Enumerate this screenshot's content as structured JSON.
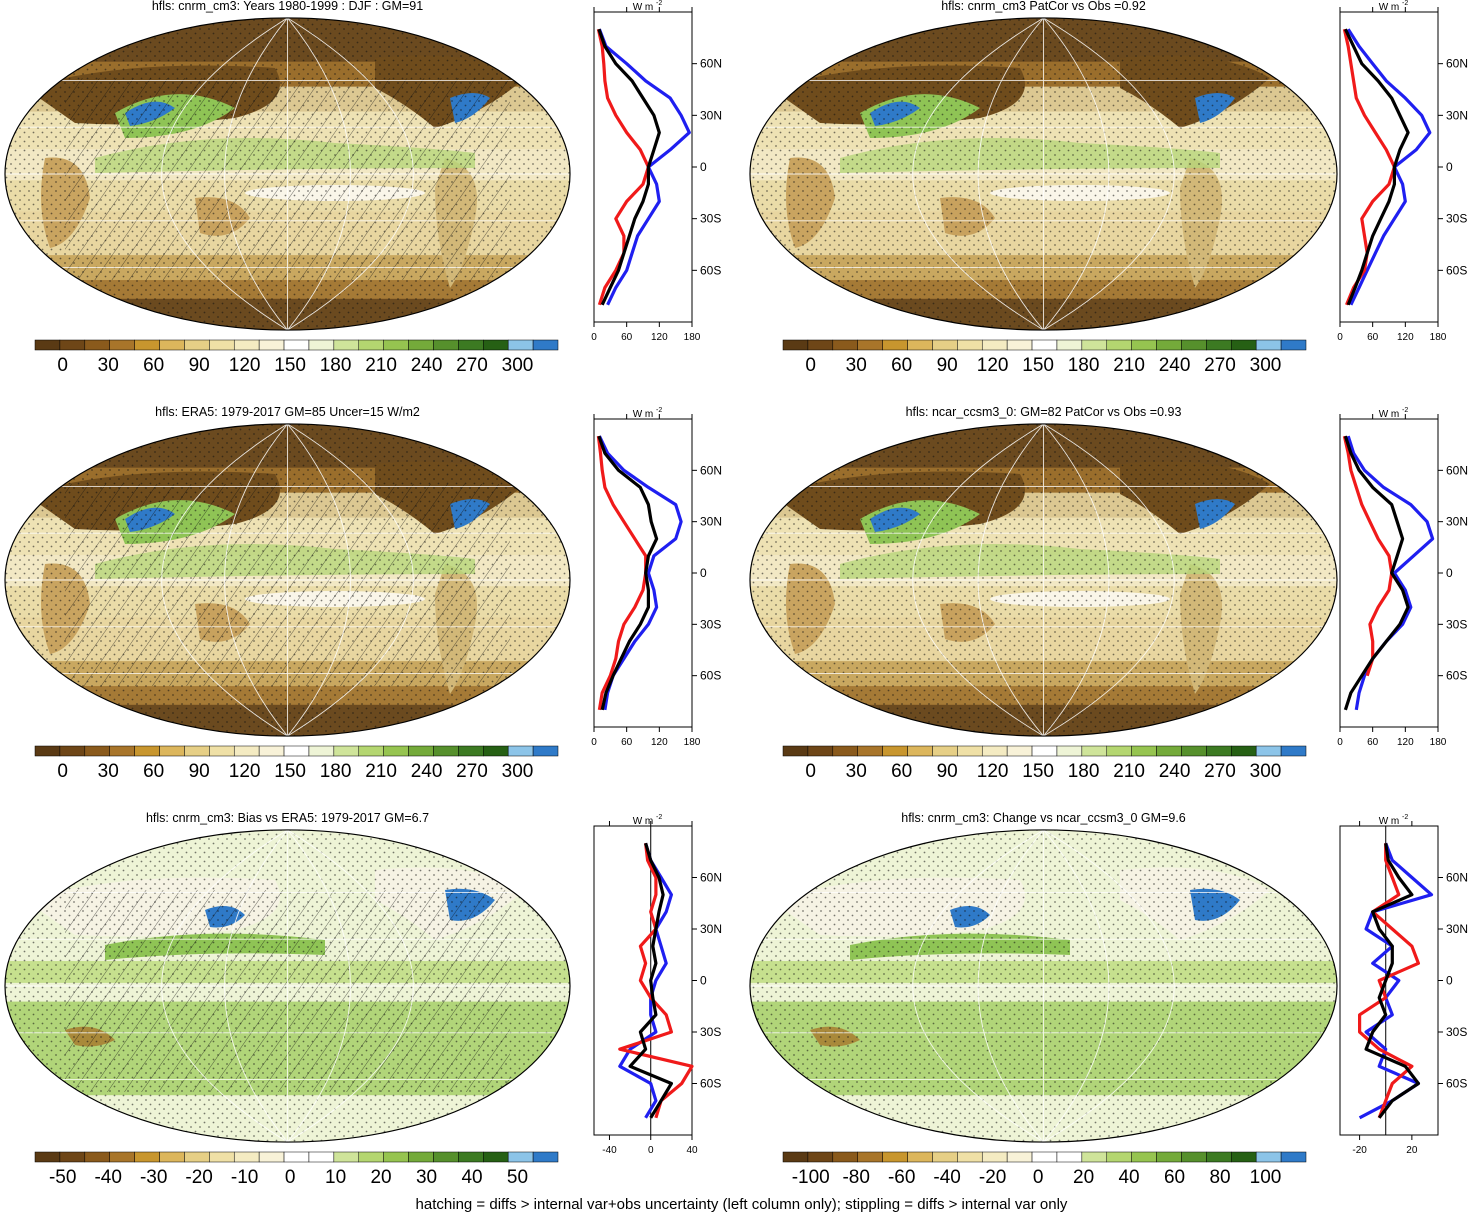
{
  "footer_note": "hatching = diffs > internal var+obs uncertainty (left column only); stippling = diffs > internal var only",
  "colors": {
    "mean_palette": [
      "#5a3a14",
      "#6e4617",
      "#8a5a1c",
      "#a8752a",
      "#c8962e",
      "#dcb65c",
      "#e6cf86",
      "#efe0a6",
      "#f4ebc2",
      "#f8f2d8",
      "#ffffff",
      "#eef4d6",
      "#cfe49a",
      "#b4d670",
      "#96c450",
      "#74aa3a",
      "#56902c",
      "#3c7a22",
      "#266014",
      "#8cc4e8",
      "#2f7ac8"
    ],
    "diff_palette": [
      "#5a3a14",
      "#6e4617",
      "#8a5a1c",
      "#a8752a",
      "#c8962e",
      "#dcb65c",
      "#e6cf86",
      "#efe0a6",
      "#f4ebc2",
      "#f8f2d8",
      "#ffffff",
      "#ffffff",
      "#cfe49a",
      "#b4d670",
      "#96c450",
      "#74aa3a",
      "#56902c",
      "#3c7a22",
      "#266014",
      "#8cc4e8",
      "#2f7ac8"
    ],
    "series_blue": "#1f1ff0",
    "series_red": "#f01a1a",
    "series_black": "#000000",
    "graticule": "#ffffff"
  },
  "panels": [
    {
      "title": "hfls: cnrm_cm3: Years 1980-1999 : DJF : GM=91",
      "map_theme": "mean",
      "hatching": true,
      "colorbar": {
        "labels": [
          "0",
          "30",
          "60",
          "90",
          "120",
          "150",
          "180",
          "210",
          "240",
          "270",
          "300"
        ]
      },
      "zonal": {
        "unit_label": "W m",
        "unit_sup": "-2",
        "x_ticks": [
          "0",
          "60",
          "120",
          "180"
        ],
        "xlim": [
          0,
          180
        ],
        "y_ticks": [
          "60N",
          "30N",
          "0",
          "30S",
          "60S"
        ]
      }
    },
    {
      "title": "hfls: cnrm_cm3 PatCor vs Obs =0.92",
      "map_theme": "mean",
      "hatching": false,
      "colorbar": {
        "labels": [
          "0",
          "30",
          "60",
          "90",
          "120",
          "150",
          "180",
          "210",
          "240",
          "270",
          "300"
        ]
      },
      "zonal": {
        "unit_label": "W m",
        "unit_sup": "-2",
        "x_ticks": [
          "0",
          "60",
          "120",
          "180"
        ],
        "xlim": [
          0,
          180
        ],
        "y_ticks": [
          "60N",
          "30N",
          "0",
          "30S",
          "60S"
        ]
      }
    },
    {
      "title": "hfls: ERA5: 1979-2017 GM=85 Uncer=15 W/m2",
      "map_theme": "mean",
      "hatching": true,
      "colorbar": {
        "labels": [
          "0",
          "30",
          "60",
          "90",
          "120",
          "150",
          "180",
          "210",
          "240",
          "270",
          "300"
        ]
      },
      "zonal": {
        "unit_label": "W m",
        "unit_sup": "-2",
        "x_ticks": [
          "0",
          "60",
          "120",
          "180"
        ],
        "xlim": [
          0,
          180
        ],
        "y_ticks": [
          "60N",
          "30N",
          "0",
          "30S",
          "60S"
        ]
      }
    },
    {
      "title": "hfls: ncar_ccsm3_0: GM=82 PatCor vs Obs =0.93",
      "map_theme": "mean",
      "hatching": false,
      "colorbar": {
        "labels": [
          "0",
          "30",
          "60",
          "90",
          "120",
          "150",
          "180",
          "210",
          "240",
          "270",
          "300"
        ]
      },
      "zonal": {
        "unit_label": "W m",
        "unit_sup": "-2",
        "x_ticks": [
          "0",
          "60",
          "120",
          "180"
        ],
        "xlim": [
          0,
          180
        ],
        "y_ticks": [
          "60N",
          "30N",
          "0",
          "30S",
          "60S"
        ]
      }
    },
    {
      "title": "hfls: cnrm_cm3: Bias vs ERA5: 1979-2017 GM=6.7",
      "map_theme": "diff",
      "hatching": true,
      "colorbar": {
        "labels": [
          "-50",
          "-40",
          "-30",
          "-20",
          "-10",
          "0",
          "10",
          "20",
          "30",
          "40",
          "50"
        ]
      },
      "zonal": {
        "unit_label": "W m",
        "unit_sup": "-2",
        "x_ticks": [
          "-40",
          "0",
          "40"
        ],
        "xlim": [
          -55,
          40
        ],
        "y_ticks": [
          "60N",
          "30N",
          "0",
          "30S",
          "60S"
        ]
      }
    },
    {
      "title": "hfls: cnrm_cm3: Change vs ncar_ccsm3_0 GM=9.6",
      "map_theme": "diff",
      "hatching": false,
      "colorbar": {
        "labels": [
          "-100",
          "-80",
          "-60",
          "-40",
          "-20",
          "0",
          "20",
          "40",
          "60",
          "80",
          "100"
        ]
      },
      "zonal": {
        "unit_label": "W m",
        "unit_sup": "-2",
        "x_ticks": [
          "-20",
          "20"
        ],
        "xlim": [
          -35,
          40
        ],
        "y_ticks": [
          "60N",
          "30N",
          "0",
          "30S",
          "60S"
        ]
      }
    }
  ],
  "chart_data": [
    {
      "type": "line",
      "panel": 0,
      "x_axis": "W m-2",
      "xlim": [
        0,
        180
      ],
      "y": [
        "80N",
        "70N",
        "60N",
        "50N",
        "40N",
        "30N",
        "20N",
        "10N",
        "0",
        "10S",
        "20S",
        "30S",
        "40S",
        "50S",
        "60S",
        "70S",
        "80S"
      ],
      "series": [
        {
          "color": "blue",
          "values": [
            10,
            22,
            60,
            95,
            140,
            160,
            175,
            140,
            100,
            115,
            120,
            100,
            80,
            70,
            60,
            40,
            25
          ]
        },
        {
          "color": "red",
          "values": [
            8,
            15,
            18,
            20,
            25,
            40,
            60,
            85,
            100,
            90,
            60,
            40,
            55,
            55,
            40,
            20,
            10
          ]
        },
        {
          "color": "black",
          "values": [
            9,
            20,
            40,
            70,
            90,
            110,
            120,
            110,
            100,
            100,
            90,
            75,
            65,
            55,
            45,
            30,
            15
          ]
        }
      ]
    },
    {
      "type": "line",
      "panel": 1,
      "x_axis": "W m-2",
      "xlim": [
        0,
        180
      ],
      "y": [
        "80N",
        "70N",
        "60N",
        "50N",
        "40N",
        "30N",
        "20N",
        "10N",
        "0",
        "10S",
        "20S",
        "30S",
        "40S",
        "50S",
        "60S",
        "70S",
        "80S"
      ],
      "series": [
        {
          "color": "blue",
          "values": [
            15,
            35,
            60,
            85,
            120,
            150,
            165,
            140,
            100,
            115,
            120,
            100,
            80,
            65,
            50,
            35,
            20
          ]
        },
        {
          "color": "red",
          "values": [
            8,
            15,
            20,
            25,
            30,
            45,
            65,
            85,
            100,
            90,
            60,
            40,
            45,
            50,
            45,
            25,
            12
          ]
        },
        {
          "color": "black",
          "values": [
            10,
            25,
            40,
            70,
            95,
            110,
            125,
            110,
            100,
            100,
            90,
            75,
            60,
            50,
            40,
            28,
            15
          ]
        }
      ]
    },
    {
      "type": "line",
      "panel": 2,
      "x_axis": "W m-2",
      "xlim": [
        0,
        180
      ],
      "y": [
        "80N",
        "70N",
        "60N",
        "50N",
        "40N",
        "30N",
        "20N",
        "10N",
        "0",
        "10S",
        "20S",
        "30S",
        "40S",
        "50S",
        "60S",
        "70S",
        "80S"
      ],
      "series": [
        {
          "color": "blue",
          "values": [
            10,
            25,
            55,
            100,
            150,
            160,
            150,
            110,
            100,
            110,
            115,
            100,
            75,
            55,
            35,
            25,
            20
          ]
        },
        {
          "color": "red",
          "values": [
            8,
            12,
            15,
            20,
            35,
            55,
            75,
            95,
            95,
            90,
            75,
            55,
            45,
            40,
            30,
            15,
            10
          ]
        },
        {
          "color": "black",
          "values": [
            9,
            20,
            45,
            85,
            100,
            105,
            115,
            100,
            95,
            100,
            100,
            85,
            65,
            50,
            35,
            22,
            15
          ]
        }
      ]
    },
    {
      "type": "line",
      "panel": 3,
      "x_axis": "W m-2",
      "xlim": [
        0,
        180
      ],
      "y": [
        "80N",
        "70N",
        "60N",
        "50N",
        "40N",
        "30N",
        "20N",
        "10N",
        "0",
        "10S",
        "20S",
        "30S",
        "40S",
        "50S",
        "60S",
        "70S",
        "80S"
      ],
      "series": [
        {
          "color": "blue",
          "values": [
            15,
            25,
            45,
            80,
            130,
            160,
            170,
            135,
            100,
            120,
            130,
            115,
            85,
            60,
            45,
            35,
            30
          ]
        },
        {
          "color": "red",
          "values": [
            8,
            15,
            20,
            30,
            40,
            55,
            70,
            90,
            95,
            90,
            70,
            55,
            60,
            60,
            50,
            null,
            null
          ]
        },
        {
          "color": "black",
          "values": [
            10,
            20,
            35,
            60,
            95,
            105,
            115,
            105,
            95,
            115,
            125,
            110,
            85,
            60,
            40,
            20,
            10
          ]
        }
      ]
    },
    {
      "type": "line",
      "panel": 4,
      "x_axis": "W m-2",
      "xlim": [
        -55,
        40
      ],
      "y": [
        "80N",
        "70N",
        "60N",
        "50N",
        "40N",
        "30N",
        "20N",
        "10N",
        "0",
        "10S",
        "20S",
        "30S",
        "40S",
        "50S",
        "60S",
        "70S",
        "80S"
      ],
      "series": [
        {
          "color": "blue",
          "values": [
            -5,
            0,
            10,
            20,
            15,
            5,
            10,
            15,
            5,
            0,
            0,
            5,
            -20,
            -30,
            0,
            5,
            -5
          ]
        },
        {
          "color": "red",
          "values": [
            -5,
            -3,
            5,
            5,
            0,
            5,
            -10,
            -5,
            -10,
            0,
            15,
            20,
            -30,
            40,
            30,
            10,
            5
          ]
        },
        {
          "color": "black",
          "values": [
            -5,
            0,
            8,
            12,
            8,
            5,
            2,
            5,
            0,
            2,
            5,
            -10,
            -5,
            -20,
            20,
            10,
            0
          ]
        }
      ]
    },
    {
      "type": "line",
      "panel": 5,
      "x_axis": "W m-2",
      "xlim": [
        -35,
        40
      ],
      "y": [
        "80N",
        "70N",
        "60N",
        "50N",
        "40N",
        "30N",
        "20N",
        "10N",
        "0",
        "10S",
        "20S",
        "30S",
        "40S",
        "50S",
        "60S",
        "70S",
        "80S"
      ],
      "series": [
        {
          "color": "blue",
          "values": [
            0,
            5,
            20,
            35,
            -10,
            -15,
            5,
            -10,
            10,
            0,
            5,
            -15,
            0,
            -5,
            25,
            5,
            -20
          ]
        },
        {
          "color": "red",
          "values": [
            0,
            0,
            5,
            10,
            -10,
            5,
            20,
            25,
            -5,
            0,
            -20,
            -20,
            -5,
            20,
            5,
            0,
            -5
          ]
        },
        {
          "color": "black",
          "values": [
            0,
            2,
            10,
            20,
            -10,
            -5,
            5,
            5,
            0,
            -5,
            0,
            -10,
            -15,
            15,
            25,
            5,
            -5
          ]
        }
      ]
    }
  ]
}
